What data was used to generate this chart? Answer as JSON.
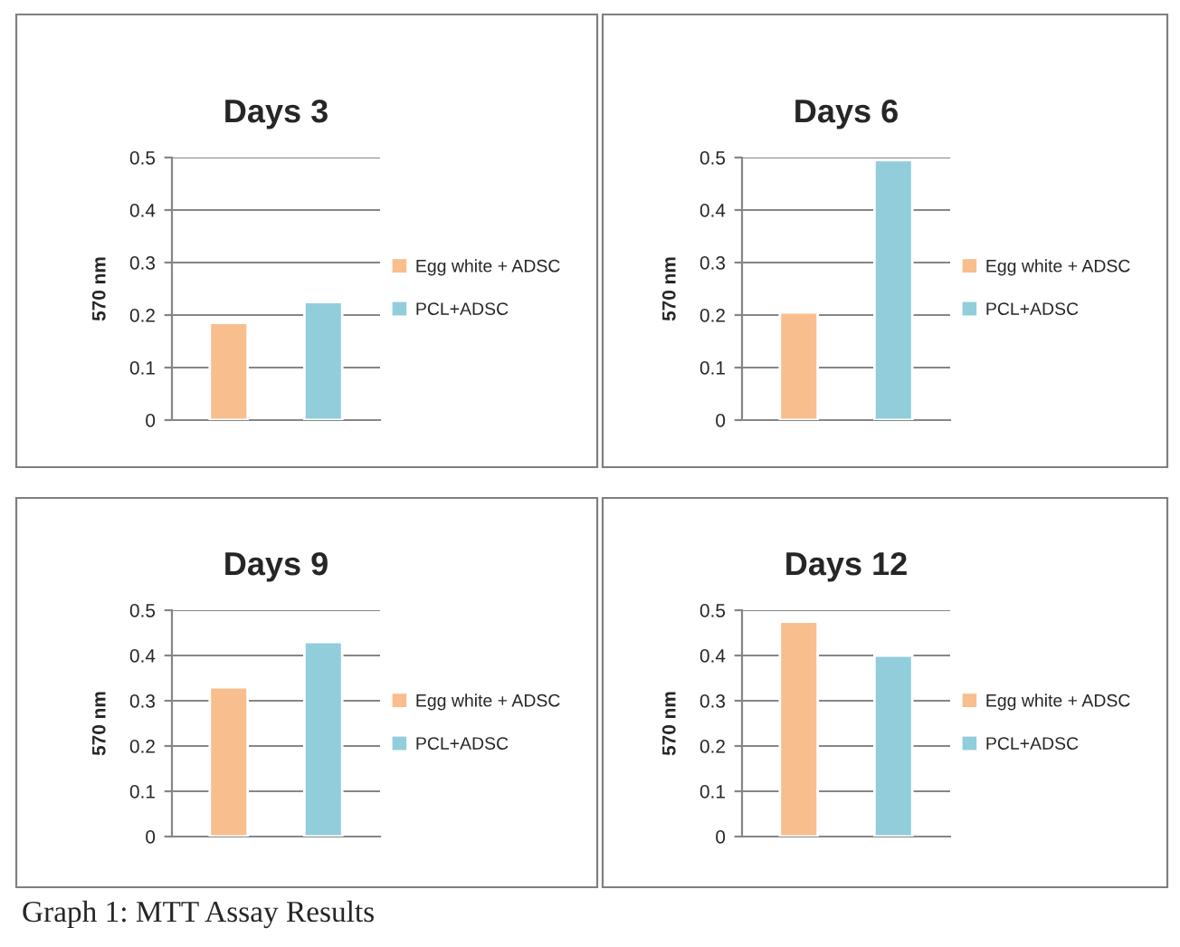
{
  "chart_data": [
    {
      "type": "bar",
      "title": "Days 3",
      "ylabel": "570 nm",
      "categories": [
        null
      ],
      "series": [
        {
          "name": "Egg white + ADSC",
          "color": "#f9be8e",
          "values": [
            0.185
          ]
        },
        {
          "name": "PCL+ADSC",
          "color": "#92cddc",
          "values": [
            0.225
          ]
        }
      ],
      "ylim": [
        0,
        0.5
      ],
      "yticks": [
        0,
        0.1,
        0.2,
        0.3,
        0.4,
        0.5
      ],
      "grid": "y",
      "legend": "right",
      "tick_labels": "y"
    },
    {
      "type": "bar",
      "title": "Days 6",
      "ylabel": "570 nm",
      "categories": [
        null
      ],
      "series": [
        {
          "name": "Egg white + ADSC",
          "color": "#f9be8e",
          "values": [
            0.205
          ]
        },
        {
          "name": "PCL+ADSC",
          "color": "#92cddc",
          "values": [
            0.495
          ]
        }
      ],
      "ylim": [
        0,
        0.5
      ],
      "yticks": [
        0,
        0.1,
        0.2,
        0.3,
        0.4,
        0.5
      ],
      "grid": "y",
      "legend": "right",
      "tick_labels": "y"
    },
    {
      "type": "bar",
      "title": "Days 9",
      "ylabel": "570 nm",
      "categories": [
        null
      ],
      "series": [
        {
          "name": "Egg white + ADSC",
          "color": "#f9be8e",
          "values": [
            0.33
          ]
        },
        {
          "name": "PCL+ADSC",
          "color": "#92cddc",
          "values": [
            0.43
          ]
        }
      ],
      "ylim": [
        0,
        0.5
      ],
      "yticks": [
        0,
        0.1,
        0.2,
        0.3,
        0.4,
        0.5
      ],
      "grid": "y",
      "legend": "right",
      "tick_labels": "y"
    },
    {
      "type": "bar",
      "title": "Days 12",
      "ylabel": "570 nm",
      "categories": [
        null
      ],
      "series": [
        {
          "name": "Egg white + ADSC",
          "color": "#f9be8e",
          "values": [
            0.475
          ]
        },
        {
          "name": "PCL+ADSC",
          "color": "#92cddc",
          "values": [
            0.4
          ]
        }
      ],
      "ylim": [
        0,
        0.5
      ],
      "yticks": [
        0,
        0.1,
        0.2,
        0.3,
        0.4,
        0.5
      ],
      "grid": "y",
      "legend": "right",
      "tick_labels": "y",
      "annotations": [
        "Graph 1: MTT Assay Results"
      ]
    }
  ]
}
